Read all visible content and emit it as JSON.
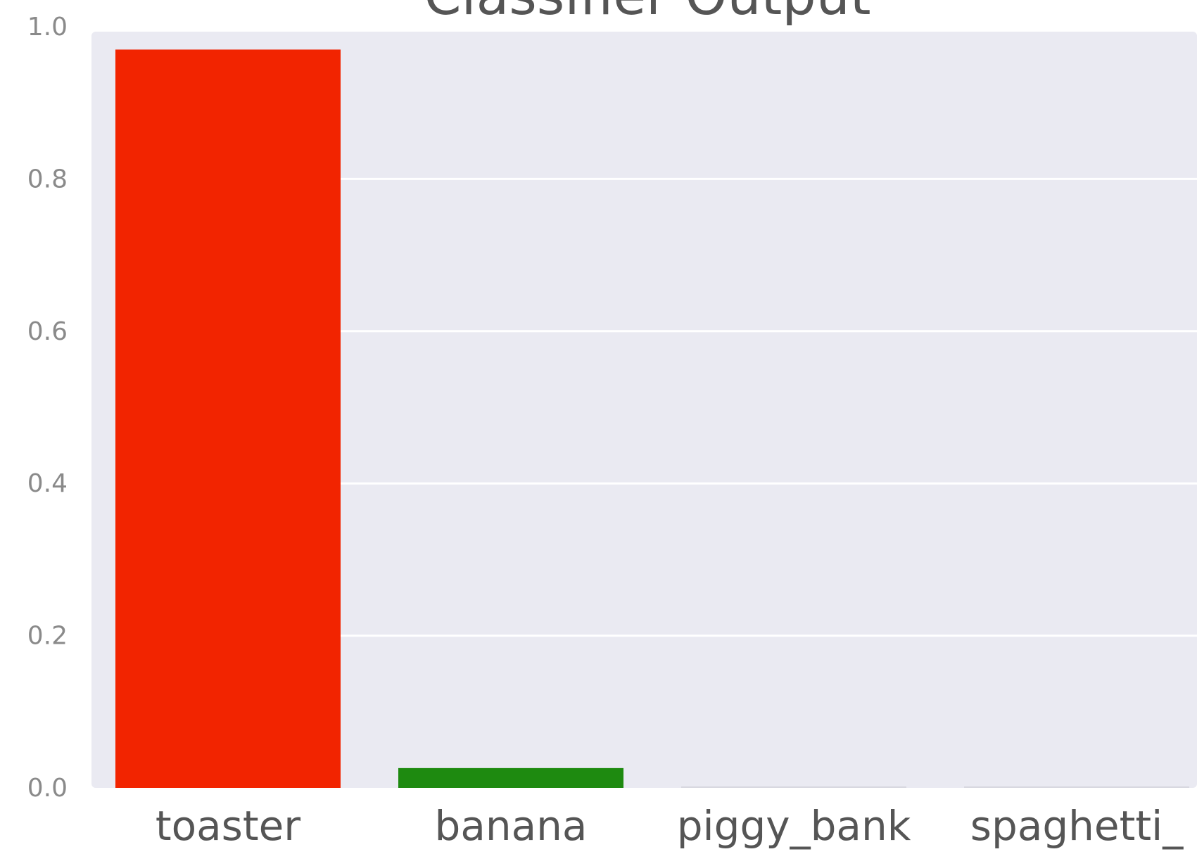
{
  "chart_data": {
    "type": "bar",
    "title": "Classifier Output",
    "xlabel": "",
    "ylabel": "",
    "categories": [
      "toaster",
      "banana",
      "piggy_bank",
      "spaghetti_"
    ],
    "values": [
      0.97,
      0.026,
      0.002,
      0.002
    ],
    "colors": [
      "#f22400",
      "#1e8a10",
      "#d8d8e0",
      "#d8d8e0"
    ],
    "ylim": [
      0,
      1.0
    ],
    "yticks": [
      "0.0",
      "0.2",
      "0.4",
      "0.6",
      "0.8",
      "1.0"
    ],
    "grid": true,
    "background": "#eaeaf2"
  }
}
